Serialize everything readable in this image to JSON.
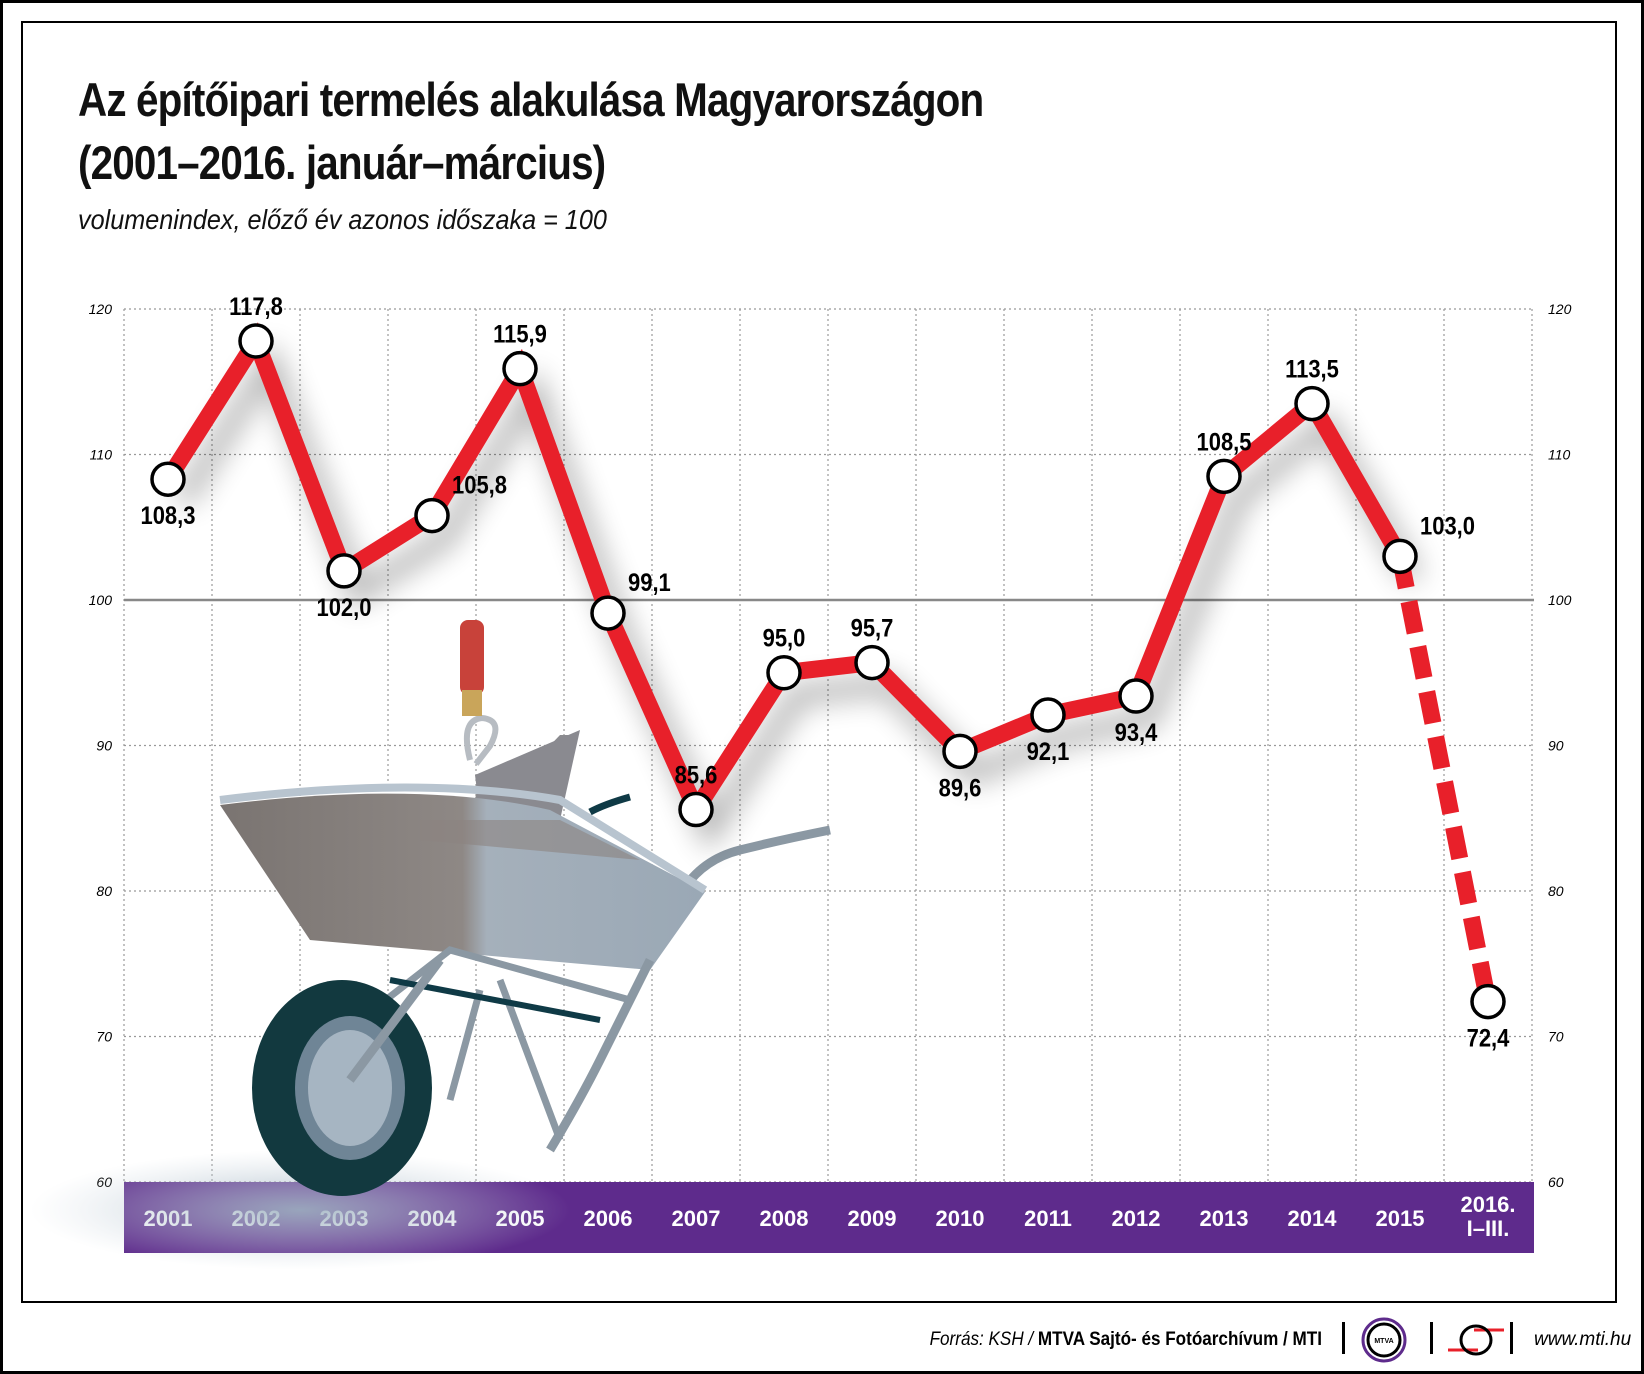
{
  "title_line1": "Az építőipari termelés alakulása Magyarországon",
  "title_line2": "(2001–2016. január–március)",
  "subtitle": "volumenindex, előző év azonos időszaka = 100",
  "chart_data": {
    "type": "line",
    "categories": [
      "2001",
      "2002",
      "2003",
      "2004",
      "2005",
      "2006",
      "2007",
      "2008",
      "2009",
      "2010",
      "2011",
      "2012",
      "2013",
      "2014",
      "2015",
      "2016. I–III."
    ],
    "values": [
      108.3,
      117.8,
      102.0,
      105.8,
      115.9,
      99.1,
      85.6,
      95.0,
      95.7,
      89.6,
      92.1,
      93.4,
      108.5,
      113.5,
      103.0,
      72.4
    ],
    "data_labels": [
      "108,3",
      "117,8",
      "102,0",
      "105,8",
      "115,9",
      "99,1",
      "85,6",
      "95,0",
      "95,7",
      "89,6",
      "92,1",
      "93,4",
      "108,5",
      "113,5",
      "103,0",
      "72,4"
    ],
    "label_position": [
      "below",
      "above",
      "below",
      "right",
      "above",
      "right",
      "above",
      "above",
      "above",
      "below",
      "below",
      "below",
      "above",
      "above",
      "right",
      "below"
    ],
    "dashed_last_segment": true,
    "ylim": [
      60,
      120
    ],
    "yticks": [
      "60",
      "70",
      "80",
      "90",
      "100",
      "110",
      "120"
    ],
    "reference_line": 100,
    "grid": true,
    "line_color": "#e8202a",
    "band_color": "#5e2b8c"
  },
  "footer": {
    "source_prefix": "Forrás: KSH /",
    "source_bold": "MTVA Sajtó- és Fotóarchívum / MTI",
    "logo_text": "MTVA",
    "url": "www.mti.hu"
  }
}
